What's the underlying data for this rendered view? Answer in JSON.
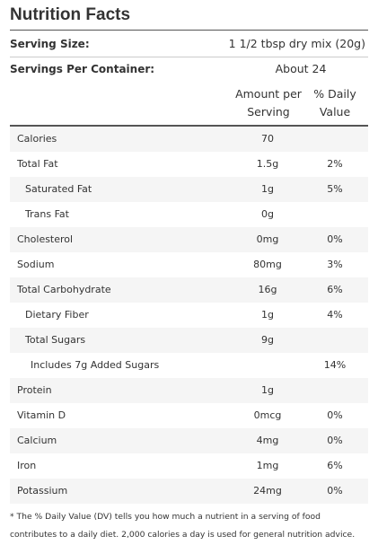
{
  "title": "Nutrition Facts",
  "serving_size": {
    "label": "Serving Size:",
    "value": "1 1/2 tbsp dry mix (20g)"
  },
  "servings_per_container": {
    "label": "Servings Per Container:",
    "value": "About 24"
  },
  "columns": [
    "Amount per Serving",
    "% Daily Value"
  ],
  "rows": [
    [
      "Calories",
      "70",
      null
    ],
    [
      "Total Fat",
      "1.5g",
      "2%"
    ],
    [
      "Saturated Fat",
      "1g",
      "5%"
    ],
    [
      "Trans Fat",
      "0g",
      null
    ],
    [
      "Cholesterol",
      "0mg",
      "0%"
    ],
    [
      "Sodium",
      "80mg",
      "3%"
    ],
    [
      "Total Carbohydrate",
      "16g",
      "6%"
    ],
    [
      "Dietary Fiber",
      "1g",
      "4%"
    ],
    [
      "Total Sugars",
      "9g",
      null
    ],
    [
      "Includes 7g Added Sugars",
      null,
      "14%"
    ],
    [
      "Protein",
      "1g",
      null
    ],
    [
      "Vitamin D",
      "0mcg",
      "0%"
    ],
    [
      "Calcium",
      "4mg",
      "0%"
    ],
    [
      "Iron",
      "1mg",
      "6%"
    ],
    [
      "Potassium",
      "24mg",
      "0%"
    ]
  ],
  "footnote": "* The % Daily Value (DV) tells you how much a nutrient in a serving of food contributes to a daily diet. 2,000 calories a day is used for general nutrition advice."
}
